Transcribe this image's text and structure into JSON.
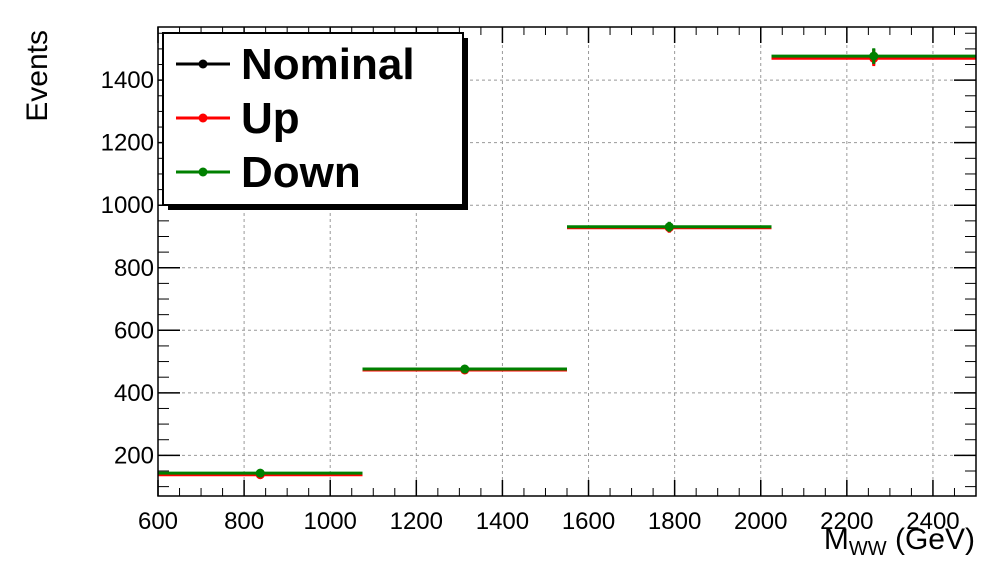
{
  "chart_data": {
    "type": "line",
    "xlabel": "M",
    "xlabel_sub": "WW",
    "xlabel_unit": " (GeV)",
    "ylabel": "Events",
    "xlim": [
      600,
      2500
    ],
    "ylim": [
      70,
      1570
    ],
    "x_ticks": [
      600,
      800,
      1000,
      1200,
      1400,
      1600,
      1800,
      2000,
      2200,
      2400
    ],
    "y_ticks": [
      200,
      400,
      600,
      800,
      1000,
      1200,
      1400
    ],
    "grid": true,
    "legend_position": "top-left",
    "bins": [
      {
        "lo": 600,
        "hi": 1075,
        "center": 837.5
      },
      {
        "lo": 1075,
        "hi": 1550,
        "center": 1312.5
      },
      {
        "lo": 1550,
        "hi": 2025,
        "center": 1787.5
      },
      {
        "lo": 2025,
        "hi": 2500,
        "center": 2262.5
      }
    ],
    "series": [
      {
        "name": "Nominal",
        "color": "#000000",
        "values": [
          142,
          475,
          930,
          1475
        ],
        "errors": [
          5,
          10,
          16,
          25
        ]
      },
      {
        "name": "Up",
        "color": "#ff0000",
        "values": [
          138,
          473,
          928,
          1470
        ],
        "errors": [
          5,
          10,
          16,
          25
        ]
      },
      {
        "name": "Down",
        "color": "#008000",
        "values": [
          143,
          476,
          931,
          1477
        ],
        "errors": [
          5,
          10,
          16,
          25
        ]
      }
    ]
  }
}
